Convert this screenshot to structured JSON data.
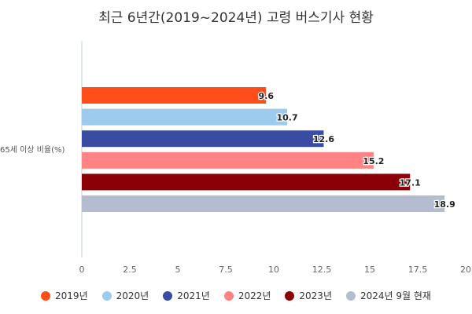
{
  "chart_data": {
    "type": "bar",
    "orientation": "horizontal",
    "title": "최근 6년간(2019~2024년) 고령 버스기사 현황",
    "categories": [
      "65세 이상 비율(%)"
    ],
    "series": [
      {
        "name": "2019년",
        "values": [
          9.6
        ],
        "color": "#FF4E1A"
      },
      {
        "name": "2020년",
        "values": [
          10.7
        ],
        "color": "#9CCBEE"
      },
      {
        "name": "2021년",
        "values": [
          12.6
        ],
        "color": "#3A4BA3"
      },
      {
        "name": "2022년",
        "values": [
          15.2
        ],
        "color": "#FF8383"
      },
      {
        "name": "2023년",
        "values": [
          17.1
        ],
        "color": "#8B0006"
      },
      {
        "name": "2024년 9월 현재",
        "values": [
          18.9
        ],
        "color": "#B4BDCF"
      }
    ],
    "xlim": [
      0,
      20
    ],
    "xticks": [
      "0",
      "2.5",
      "5",
      "7.5",
      "10",
      "12.5",
      "15",
      "17.5",
      "20"
    ],
    "grid": false,
    "legend": "bottom",
    "data_labels": true
  }
}
